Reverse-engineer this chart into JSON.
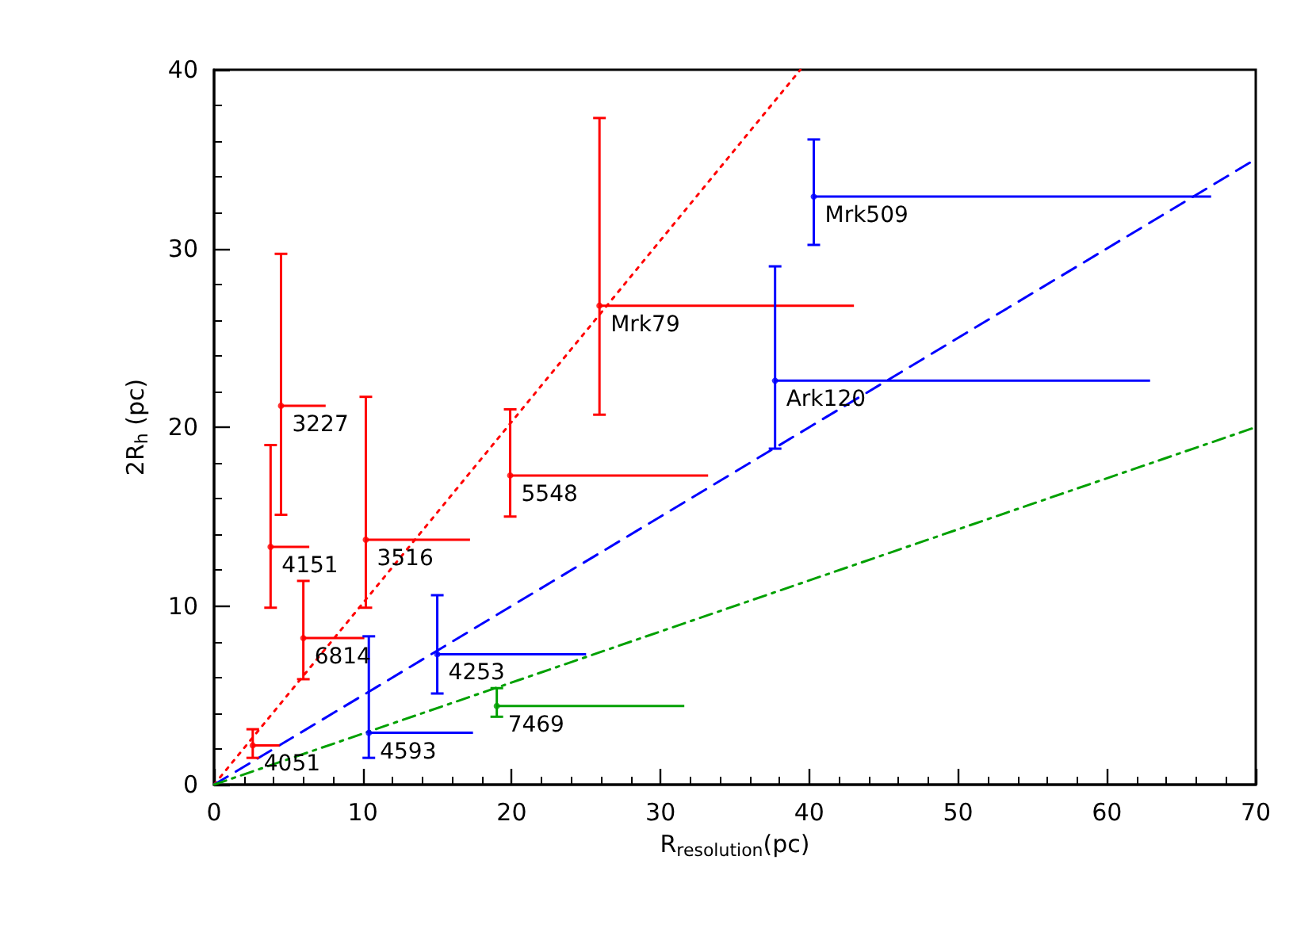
{
  "chart_data": {
    "type": "scatter",
    "xlabel": "R$_{resolution}$(pc)",
    "ylabel": "2R$_{h}$ (pc)",
    "xlim": [
      0,
      70
    ],
    "ylim": [
      0,
      40
    ],
    "xticks": [
      0,
      10,
      20,
      30,
      40,
      50,
      60,
      70
    ],
    "yticks": [
      0,
      10,
      20,
      30,
      40
    ],
    "grid": false,
    "series": [
      {
        "color": "#ff0000",
        "x": [
          2.6,
          3.8,
          4.5,
          6.0,
          10.2,
          19.9,
          25.9
        ],
        "values": [
          2.2,
          13.3,
          21.2,
          8.2,
          13.7,
          17.3,
          26.8
        ],
        "errors": [
          [
            1.5,
            3.1
          ],
          [
            9.9,
            19.0
          ],
          [
            15.1,
            29.7
          ],
          [
            5.9,
            11.4
          ],
          [
            9.9,
            21.7
          ],
          [
            15.0,
            21.0
          ],
          [
            20.7,
            37.3
          ]
        ],
        "xerrors": [
          [
            2.6,
            4.4
          ],
          [
            3.8,
            6.4
          ],
          [
            4.5,
            7.5
          ],
          [
            6.0,
            10.1
          ],
          [
            10.2,
            17.2
          ],
          [
            19.9,
            33.2
          ],
          [
            25.9,
            43.0
          ]
        ]
      },
      {
        "color": "#0000ff",
        "x": [
          10.4,
          15.0,
          37.7,
          40.3
        ],
        "values": [
          2.9,
          7.3,
          22.6,
          32.9
        ],
        "errors": [
          [
            1.5,
            8.3
          ],
          [
            5.1,
            10.6
          ],
          [
            18.8,
            29.0
          ],
          [
            30.2,
            36.1
          ]
        ],
        "xerrors": [
          [
            10.4,
            17.4
          ],
          [
            15.0,
            25.0
          ],
          [
            37.7,
            62.9
          ],
          [
            40.3,
            67.0
          ]
        ]
      },
      {
        "color": "#00a000",
        "x": [
          19.0
        ],
        "values": [
          4.4
        ],
        "errors": [
          [
            3.8,
            5.4
          ]
        ],
        "xerrors": [
          [
            19.0,
            31.6
          ]
        ]
      },
      {
        "type": "line",
        "color": "#ff0000",
        "line_style": "dotted",
        "x": [
          0,
          39.4
        ],
        "values": [
          0,
          40
        ]
      },
      {
        "type": "line",
        "color": "#0000ff",
        "line_style": "dashed",
        "x": [
          0,
          70
        ],
        "values": [
          0,
          35
        ]
      },
      {
        "type": "line",
        "color": "#00a000",
        "line_style": "dashdot",
        "x": [
          0,
          70
        ],
        "values": [
          0,
          20
        ]
      }
    ],
    "annotations": [
      {
        "text": "4051",
        "x": 2.6,
        "y": 2.2
      },
      {
        "text": "4151",
        "x": 3.8,
        "y": 13.3
      },
      {
        "text": "3227",
        "x": 4.5,
        "y": 21.2
      },
      {
        "text": "6814",
        "x": 6.0,
        "y": 8.2
      },
      {
        "text": "3516",
        "x": 10.2,
        "y": 13.7
      },
      {
        "text": "5548",
        "x": 19.9,
        "y": 17.3
      },
      {
        "text": "Mrk79",
        "x": 25.9,
        "y": 26.8
      },
      {
        "text": "4593",
        "x": 10.4,
        "y": 2.9
      },
      {
        "text": "4253",
        "x": 15.0,
        "y": 7.3
      },
      {
        "text": "Ark120",
        "x": 37.7,
        "y": 22.6
      },
      {
        "text": "Mrk509",
        "x": 40.3,
        "y": 32.9
      },
      {
        "text": "7469",
        "x": 19.0,
        "y": 4.4
      }
    ]
  }
}
